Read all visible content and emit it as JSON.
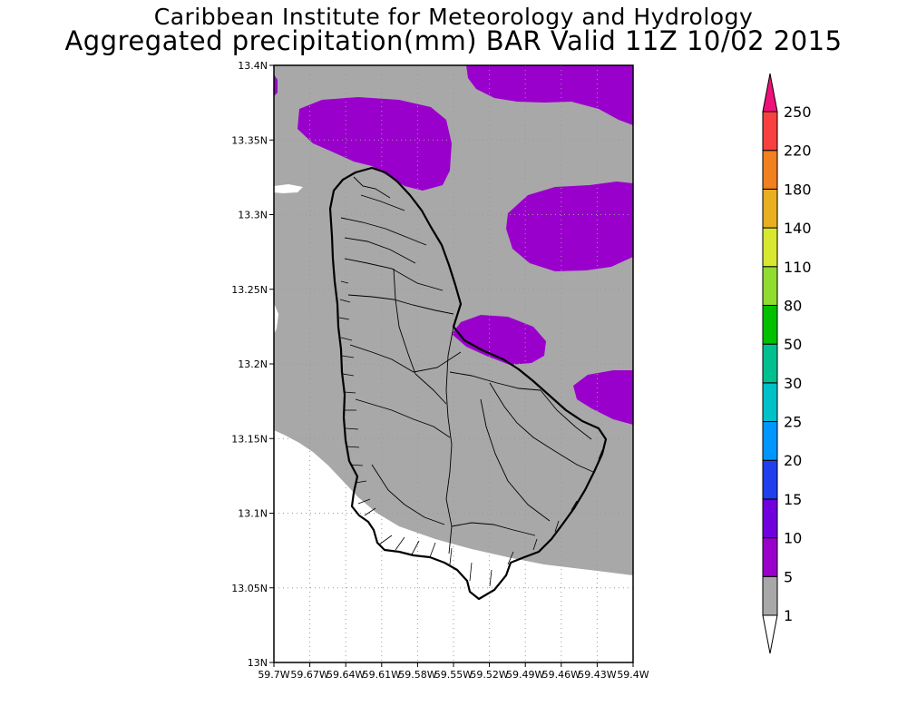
{
  "title": {
    "line1": "Caribbean Institute for Meteorology and Hydrology",
    "line2": "Aggregated precipitation(mm) BAR Valid 11Z 10/02 2015"
  },
  "map": {
    "region": "Barbados",
    "lat_range": [
      13.0,
      13.4
    ],
    "lon_range": [
      -59.7,
      -59.4
    ],
    "lat_ticks": [
      "13N",
      "13.05N",
      "13.1N",
      "13.15N",
      "13.2N",
      "13.25N",
      "13.3N",
      "13.35N",
      "13.4N"
    ],
    "lon_ticks": [
      "59.7W",
      "59.67W",
      "59.64W",
      "59.61W",
      "59.58W",
      "59.55W",
      "59.52W",
      "59.49W",
      "59.46W",
      "59.43W",
      "59.4W"
    ],
    "colors": {
      "ocean_low": "#ffffff",
      "shade_1_5": "#a8a8a8",
      "shade_5_10": "#9a00cc",
      "coast": "#000000",
      "grid": "#9a9a9a"
    }
  },
  "colorbar": {
    "levels": [
      {
        "label": "1",
        "color": "#a8a8a8"
      },
      {
        "label": "5",
        "color": "#9a00cc"
      },
      {
        "label": "10",
        "color": "#7000dd"
      },
      {
        "label": "15",
        "color": "#2040ee"
      },
      {
        "label": "20",
        "color": "#0096ff"
      },
      {
        "label": "25",
        "color": "#00c0c8"
      },
      {
        "label": "30",
        "color": "#00c090"
      },
      {
        "label": "50",
        "color": "#00c000"
      },
      {
        "label": "80",
        "color": "#90dc30"
      },
      {
        "label": "110",
        "color": "#d8e830"
      },
      {
        "label": "140",
        "color": "#e8b020"
      },
      {
        "label": "180",
        "color": "#f08020"
      },
      {
        "label": "220",
        "color": "#f84040"
      },
      {
        "label": "250",
        "color": "#f0107a"
      }
    ],
    "bottom_arrow_color": "#ffffff",
    "top_arrow_color": "#f0107a"
  }
}
